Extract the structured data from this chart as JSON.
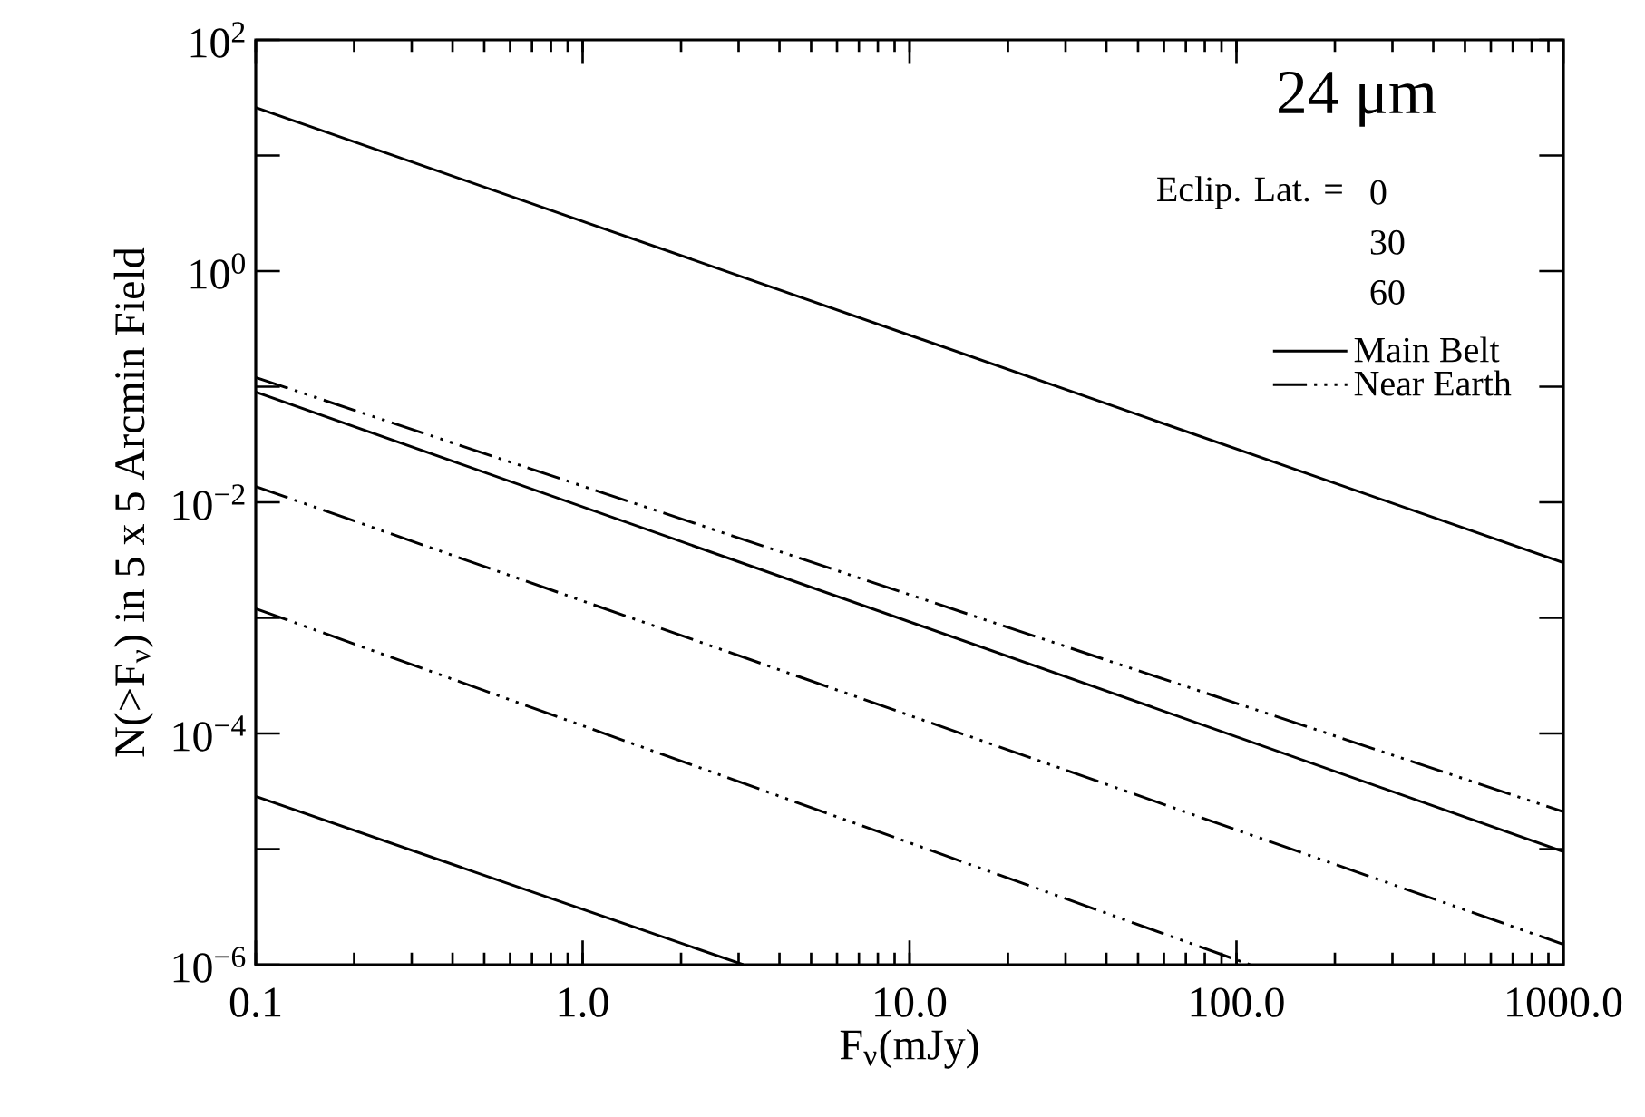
{
  "chart_data": {
    "type": "line",
    "title": "24 μm",
    "xlabel": "F$_{ν}$(mJy)",
    "ylabel": "N(>F$_{ν}$) in 5 x 5 Arcmin Field",
    "log": "xy",
    "xlim": [
      0.1,
      1000
    ],
    "ylim": [
      1e-06,
      100
    ],
    "xticks": [
      {
        "value": 0.1,
        "label": "0.1"
      },
      {
        "value": 1,
        "label": "1.0"
      },
      {
        "value": 10,
        "label": "10.0"
      },
      {
        "value": 100,
        "label": "100.0"
      },
      {
        "value": 1000,
        "label": "1000.0"
      }
    ],
    "yticks": [
      {
        "value": 1e-06,
        "label": "10$^{−6}$"
      },
      {
        "value": 1e-05,
        "label": null
      },
      {
        "value": 0.0001,
        "label": "10$^{−4}$"
      },
      {
        "value": 0.001,
        "label": null
      },
      {
        "value": 0.01,
        "label": "10$^{−2}$"
      },
      {
        "value": 0.1,
        "label": null
      },
      {
        "value": 1,
        "label": "10$^{0}$"
      },
      {
        "value": 10,
        "label": null
      },
      {
        "value": 100,
        "label": "10$^{2}$"
      }
    ],
    "grid": false,
    "legend": "top right",
    "legend_title": "Eclip. Lat. =",
    "annotations": [
      "0",
      "30",
      "60"
    ],
    "series": [
      {
        "name": "Main Belt",
        "color": "#000000",
        "line_style": "solid",
        "x": [
          0.1,
          1000
        ],
        "values": [
          26,
          0.003
        ]
      },
      {
        "color": "#000000",
        "line_style": "solid",
        "x": [
          0.1,
          1000
        ],
        "values": [
          0.09,
          9.5e-06
        ]
      },
      {
        "color": "#000000",
        "line_style": "solid",
        "x": [
          0.1,
          3.1
        ],
        "values": [
          2.85e-05,
          1e-06
        ]
      },
      {
        "name": "Near Earth",
        "color": "#000000",
        "line_style": "dashdotdotted",
        "x": [
          0.1,
          1000
        ],
        "values": [
          0.12,
          2.1e-05
        ]
      },
      {
        "color": "#000000",
        "line_style": "dashdotdotted",
        "x": [
          0.1,
          1000
        ],
        "values": [
          0.0137,
          1.5e-06
        ]
      },
      {
        "color": "#000000",
        "line_style": "dashdotdotted",
        "x": [
          0.1,
          110
        ],
        "values": [
          0.0012,
          1e-06
        ]
      }
    ]
  }
}
